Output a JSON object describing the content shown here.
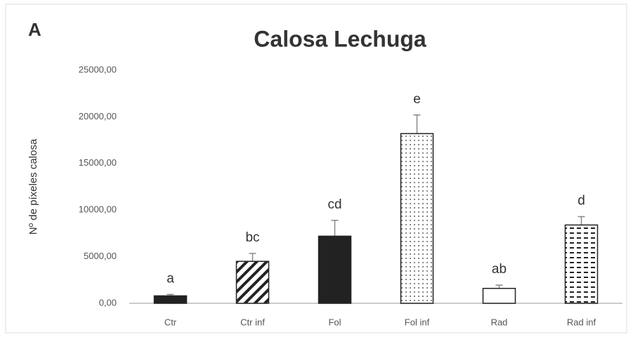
{
  "chart_data": {
    "type": "bar",
    "panel": "A",
    "title": "Calosa Lechuga",
    "ylabel": "Nº de píxeles calosa",
    "categories": [
      "Ctr",
      "Ctr inf",
      "Fol",
      "Fol inf",
      "Rad",
      "Rad inf"
    ],
    "values": [
      800,
      4500,
      7200,
      18200,
      1600,
      8400
    ],
    "errors": [
      150,
      850,
      1700,
      2000,
      350,
      900
    ],
    "labels": [
      "a",
      "bc",
      "cd",
      "e",
      "ab",
      "d"
    ],
    "patterns": [
      "solid",
      "diagonal",
      "solid",
      "dots",
      "none",
      "dashes"
    ],
    "color": "#222222",
    "ylim": [
      0,
      25000
    ],
    "yticks": [
      {
        "value": 0,
        "label": "0,00"
      },
      {
        "value": 5000,
        "label": "5000,00"
      },
      {
        "value": 10000,
        "label": "10000,00"
      },
      {
        "value": 15000,
        "label": "15000,00"
      },
      {
        "value": 20000,
        "label": "20000,00"
      },
      {
        "value": 25000,
        "label": "25000,00"
      }
    ],
    "grid": false
  }
}
